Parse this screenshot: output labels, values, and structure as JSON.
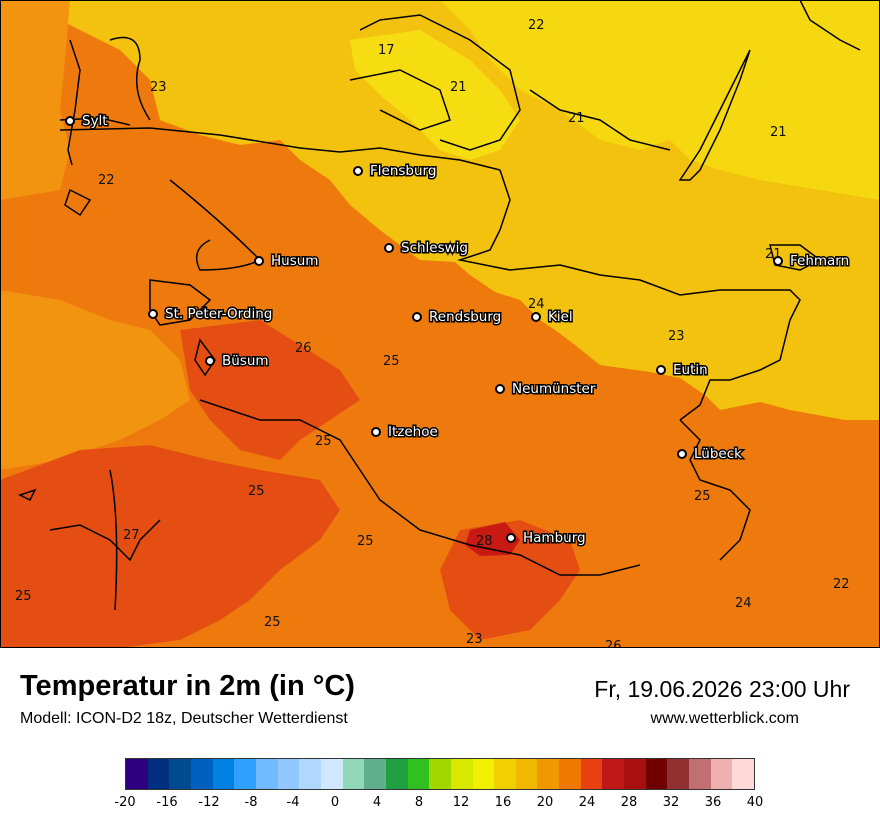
{
  "title": "Temperatur in 2m (in °C)",
  "subtitle": "Modell: ICON-D2 18z, Deutscher Wetterdienst",
  "datetime": "Fr, 19.06.2026 23:00 Uhr",
  "website": "www.wetterblick.com",
  "cities": [
    "Sylt",
    "Flensburg",
    "Schleswig",
    "Husum",
    "St. Peter-Ording",
    "Rendsburg",
    "Kiel",
    "Fehmarn",
    "Büsum",
    "Neumünster",
    "Eutin",
    "Itzehoe",
    "Lübeck",
    "Hamburg"
  ],
  "contour_values": [
    22,
    17,
    21,
    21,
    23,
    21,
    22,
    21,
    24,
    25,
    23,
    26,
    25,
    25,
    25,
    25,
    27,
    28,
    25,
    25,
    25,
    23,
    26,
    24,
    22
  ],
  "legend": {
    "colors": [
      "#2e007f",
      "#00307f",
      "#004a90",
      "#0060c0",
      "#0080e0",
      "#30a0ff",
      "#70bbff",
      "#90c8ff",
      "#b0d8ff",
      "#d0e8ff",
      "#90d8b8",
      "#60b090",
      "#20a040",
      "#30c020",
      "#a0d800",
      "#d8e800",
      "#f0f000",
      "#f0d000",
      "#f0b800",
      "#f09800",
      "#f07800",
      "#e84010",
      "#c01818",
      "#a81010",
      "#700000",
      "#903030",
      "#c07070",
      "#f0b0b0",
      "#ffd8d8"
    ],
    "ticks": [
      "-20",
      "-16",
      "-12",
      "-8",
      "-4",
      "0",
      "4",
      "8",
      "12",
      "16",
      "20",
      "24",
      "28",
      "32",
      "36",
      "40"
    ]
  }
}
